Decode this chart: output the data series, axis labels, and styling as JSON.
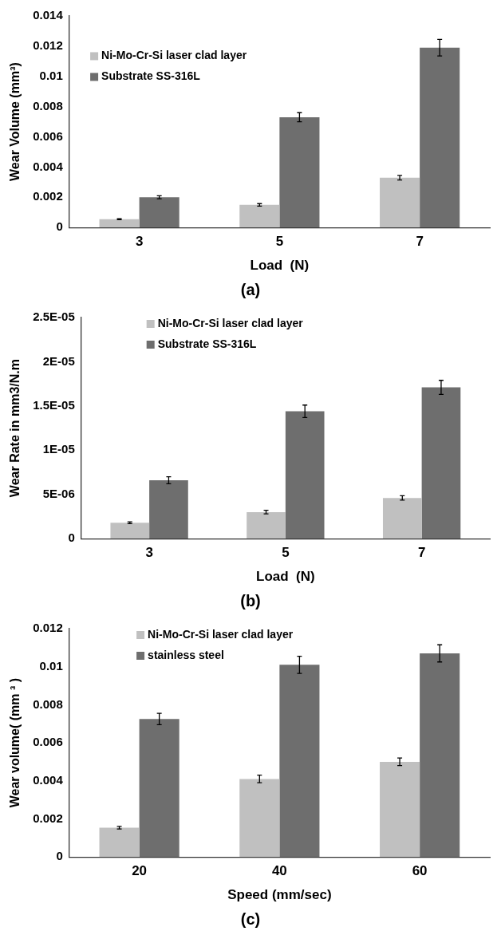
{
  "chart_data": [
    {
      "type": "bar",
      "xlabel": "Load  (N)",
      "ylabel": "Wear Volume (mm³)",
      "categories": [
        "3",
        "5",
        "7"
      ],
      "series": [
        {
          "name": "Ni-Mo-Cr-Si laser clad layer",
          "color": "#c0c0c0",
          "values": [
            0.00055,
            0.0015,
            0.0033
          ],
          "errors": [
            3e-05,
            8e-05,
            0.00015
          ]
        },
        {
          "name": "Substrate SS-316L",
          "color": "#6e6e6e",
          "values": [
            0.002,
            0.0073,
            0.0119
          ],
          "errors": [
            0.0001,
            0.0003,
            0.00055
          ]
        }
      ],
      "ylim": [
        0,
        0.014
      ],
      "yticks": [
        0,
        0.002,
        0.004,
        0.006,
        0.008,
        0.01,
        0.012,
        0.014
      ],
      "legend": "top left",
      "annotations": [
        "(a)"
      ]
    },
    {
      "type": "bar",
      "xlabel": "Load  (N)",
      "ylabel": "Wear Rate in mm3/N.m",
      "categories": [
        "3",
        "5",
        "7"
      ],
      "series": [
        {
          "name": "Ni-Mo-Cr-Si laser clad layer",
          "color": "#c0c0c0",
          "values": [
            1.8e-06,
            3e-06,
            4.6e-06
          ],
          "errors": [
            1e-07,
            2e-07,
            2.5e-07
          ]
        },
        {
          "name": "Substrate SS-316L",
          "color": "#6e6e6e",
          "values": [
            6.6e-06,
            1.44e-05,
            1.71e-05
          ],
          "errors": [
            4e-07,
            7e-07,
            8e-07
          ]
        }
      ],
      "ylim": [
        0,
        2.5e-05
      ],
      "yticks": [
        0,
        {
          "value": 5e-06,
          "label": "5E-06"
        },
        {
          "value": 1e-05,
          "label": "1E-05"
        },
        {
          "value": 1.5e-05,
          "label": "1.5E-05"
        },
        {
          "value": 2e-05,
          "label": "2E-05"
        },
        {
          "value": 2.5e-05,
          "label": "2.5E-05"
        }
      ],
      "legend": "top",
      "annotations": [
        "(b)"
      ]
    },
    {
      "type": "bar",
      "xlabel": "Speed (mm/sec)",
      "ylabel": "Wear volume( (mm ³ )",
      "categories": [
        "20",
        "40",
        "60"
      ],
      "series": [
        {
          "name": "Ni-Mo-Cr-Si laser clad layer",
          "color": "#c0c0c0",
          "values": [
            0.00154,
            0.0041,
            0.005
          ],
          "errors": [
            7e-05,
            0.0002,
            0.0002
          ]
        },
        {
          "name": "stainless steel",
          "color": "#6e6e6e",
          "values": [
            0.00725,
            0.0101,
            0.0107
          ],
          "errors": [
            0.0003,
            0.00045,
            0.00045
          ]
        }
      ],
      "ylim": [
        0,
        0.012
      ],
      "yticks": [
        0,
        0.002,
        0.004,
        0.006,
        0.008,
        0.01,
        0.012
      ],
      "legend": "top",
      "annotations": [
        "(c)"
      ]
    }
  ]
}
